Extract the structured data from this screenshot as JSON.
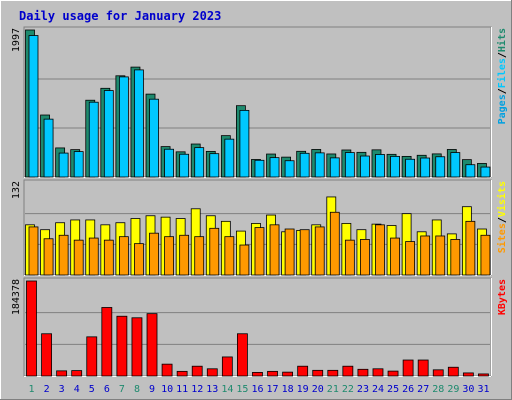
{
  "title": "Daily usage for January 2023",
  "colors": {
    "background": "#c0c0c0",
    "title": "#0000cc",
    "grid": "#808080",
    "hits": "#1e8a6e",
    "files": "#00c8ff",
    "pages": "#00a0e0",
    "visits": "#ffff00",
    "sites": "#ff9900",
    "kbytes": "#ff0000",
    "weekend_label": "#1e8a6e",
    "weekday_label": "#0000cc"
  },
  "chart_data": [
    {
      "type": "bar",
      "title": "Daily usage for January 2023",
      "x": [
        1,
        2,
        3,
        4,
        5,
        6,
        7,
        8,
        9,
        10,
        11,
        12,
        13,
        14,
        15,
        16,
        17,
        18,
        19,
        20,
        21,
        22,
        23,
        24,
        25,
        26,
        27,
        28,
        29,
        30,
        31
      ],
      "weekend_days": [
        1,
        7,
        8,
        14,
        15,
        21,
        22,
        28,
        29
      ],
      "ymax_label": "1997",
      "ylim": [
        0,
        1997
      ],
      "legend": [
        "Pages",
        "/",
        "Files",
        "/",
        "Hits"
      ],
      "series": [
        {
          "name": "Hits",
          "values": [
            1997,
            842,
            395,
            372,
            1043,
            1205,
            1375,
            1493,
            1126,
            413,
            342,
            448,
            348,
            562,
            969,
            238,
            312,
            270,
            349,
            374,
            313,
            367,
            335,
            369,
            308,
            280,
            295,
            314,
            374,
            236,
            184
          ]
        },
        {
          "name": "Files",
          "values": [
            1922,
            786,
            325,
            345,
            1016,
            1174,
            1360,
            1455,
            1057,
            377,
            309,
            399,
            317,
            514,
            905,
            227,
            263,
            221,
            322,
            328,
            260,
            332,
            285,
            306,
            280,
            241,
            258,
            275,
            332,
            167,
            135
          ]
        }
      ],
      "grid": true
    },
    {
      "type": "bar",
      "ymax_label": "132",
      "ylim": [
        0,
        132
      ],
      "legend": [
        "Sites",
        "/",
        "Visits"
      ],
      "series": [
        {
          "name": "Visits",
          "values": [
            72,
            65,
            75,
            79,
            79,
            72,
            75,
            81,
            85,
            83,
            81,
            95,
            85,
            77,
            63,
            74,
            86,
            62,
            64,
            72,
            112,
            74,
            65,
            73,
            71,
            88,
            62,
            79,
            59,
            98,
            66
          ]
        },
        {
          "name": "Sites",
          "values": [
            69,
            52,
            57,
            50,
            53,
            50,
            55,
            45,
            60,
            55,
            57,
            55,
            67,
            55,
            43,
            68,
            72,
            66,
            65,
            69,
            90,
            50,
            51,
            72,
            53,
            48,
            56,
            56,
            51,
            77,
            57
          ]
        }
      ],
      "grid": true
    },
    {
      "type": "bar",
      "ymax_label": "184378",
      "ylim": [
        0,
        184378
      ],
      "legend": [
        "KBytes"
      ],
      "series": [
        {
          "name": "KBytes",
          "values": [
            184378,
            82000,
            10000,
            10500,
            76000,
            133000,
            116000,
            113000,
            121000,
            23000,
            9000,
            19000,
            14000,
            37000,
            82000,
            7000,
            9000,
            7500,
            19000,
            11000,
            11000,
            19000,
            13000,
            14000,
            9500,
            31000,
            31000,
            12000,
            17000,
            6000,
            4000
          ]
        }
      ],
      "grid": true
    }
  ]
}
